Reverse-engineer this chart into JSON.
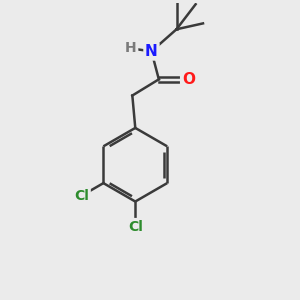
{
  "background_color": "#ebebeb",
  "bond_color": "#3a3a3a",
  "atom_colors": {
    "N": "#1a1aff",
    "O": "#ff1a1a",
    "Cl": "#2d8c2d",
    "H": "#7a7a7a",
    "C": "#3a3a3a"
  },
  "bond_width": 1.8,
  "figsize": [
    3.0,
    3.0
  ],
  "dpi": 100
}
